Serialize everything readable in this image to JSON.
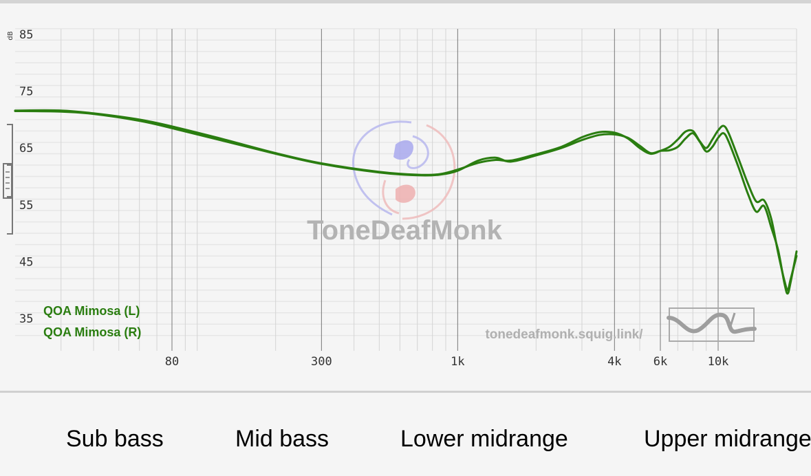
{
  "chart_data": {
    "type": "line",
    "x_scale": "log",
    "ylabel": "dB",
    "ylim": [
      30,
      88
    ],
    "xlim": [
      20,
      20000
    ],
    "y_ticks": [
      "85",
      "75",
      "65",
      "55",
      "45",
      "35"
    ],
    "x_ticks": [
      "80",
      "300",
      "1k",
      "4k",
      "6k",
      "10k"
    ],
    "grid": true,
    "legend_position": "bottom-left",
    "series": [
      {
        "name": "QOA Mimosa (L)",
        "color": "#2a7d10",
        "points": [
          [
            20,
            71.5
          ],
          [
            30,
            71.4
          ],
          [
            40,
            71
          ],
          [
            60,
            69.8
          ],
          [
            80,
            68.5
          ],
          [
            120,
            66.5
          ],
          [
            200,
            64
          ],
          [
            300,
            62.2
          ],
          [
            500,
            60.7
          ],
          [
            700,
            60.2
          ],
          [
            850,
            60.3
          ],
          [
            1000,
            61
          ],
          [
            1200,
            62.8
          ],
          [
            1400,
            63.3
          ],
          [
            1600,
            62.6
          ],
          [
            2000,
            63.7
          ],
          [
            2500,
            65
          ],
          [
            3000,
            66.4
          ],
          [
            3500,
            67.3
          ],
          [
            4000,
            67.4
          ],
          [
            4500,
            66.8
          ],
          [
            5000,
            65.4
          ],
          [
            5500,
            64.1
          ],
          [
            6000,
            64.5
          ],
          [
            6500,
            64.6
          ],
          [
            7000,
            65.2
          ],
          [
            7500,
            66.7
          ],
          [
            8000,
            67.6
          ],
          [
            8500,
            66.1
          ],
          [
            9000,
            64.4
          ],
          [
            9500,
            65.2
          ],
          [
            10000,
            66.8
          ],
          [
            10500,
            67.6
          ],
          [
            11000,
            66
          ],
          [
            12000,
            61.5
          ],
          [
            13000,
            57
          ],
          [
            14000,
            53.8
          ],
          [
            15000,
            54.8
          ],
          [
            16000,
            51
          ],
          [
            17000,
            47
          ],
          [
            18000,
            41
          ],
          [
            18500,
            39.4
          ],
          [
            19000,
            41.5
          ],
          [
            20000,
            46.8
          ]
        ]
      },
      {
        "name": "QOA Mimosa (R)",
        "color": "#2a7d10",
        "points": [
          [
            20,
            71.6
          ],
          [
            30,
            71.6
          ],
          [
            40,
            71.1
          ],
          [
            60,
            70
          ],
          [
            80,
            68.8
          ],
          [
            120,
            66.8
          ],
          [
            200,
            64.1
          ],
          [
            300,
            62.3
          ],
          [
            500,
            60.8
          ],
          [
            700,
            60.3
          ],
          [
            850,
            60.4
          ],
          [
            1000,
            61.2
          ],
          [
            1200,
            62.4
          ],
          [
            1400,
            62.9
          ],
          [
            1600,
            62.8
          ],
          [
            2000,
            63.9
          ],
          [
            2500,
            65.2
          ],
          [
            3000,
            66.9
          ],
          [
            3500,
            67.8
          ],
          [
            4000,
            67.7
          ],
          [
            4500,
            66.7
          ],
          [
            5000,
            65
          ],
          [
            5500,
            64
          ],
          [
            6000,
            64.5
          ],
          [
            6500,
            65.2
          ],
          [
            7000,
            66.5
          ],
          [
            7500,
            67.9
          ],
          [
            8000,
            68
          ],
          [
            8500,
            66.2
          ],
          [
            9000,
            65
          ],
          [
            9500,
            66.5
          ],
          [
            10000,
            68.1
          ],
          [
            10500,
            68.9
          ],
          [
            11000,
            67.5
          ],
          [
            12000,
            63
          ],
          [
            13000,
            58.8
          ],
          [
            14000,
            55.6
          ],
          [
            15000,
            55.8
          ],
          [
            16000,
            52.5
          ],
          [
            17000,
            46.5
          ],
          [
            18000,
            41.5
          ],
          [
            18500,
            40
          ],
          [
            19000,
            42
          ],
          [
            20000,
            46
          ]
        ]
      }
    ]
  },
  "watermark": {
    "brand": "ToneDeafMonk",
    "site": "tonedeafmonk.squig.link/"
  },
  "bands": [
    {
      "label": "Sub bass"
    },
    {
      "label": "Mid bass"
    },
    {
      "label": "Lower midrange"
    },
    {
      "label": "Upper midrange"
    }
  ]
}
